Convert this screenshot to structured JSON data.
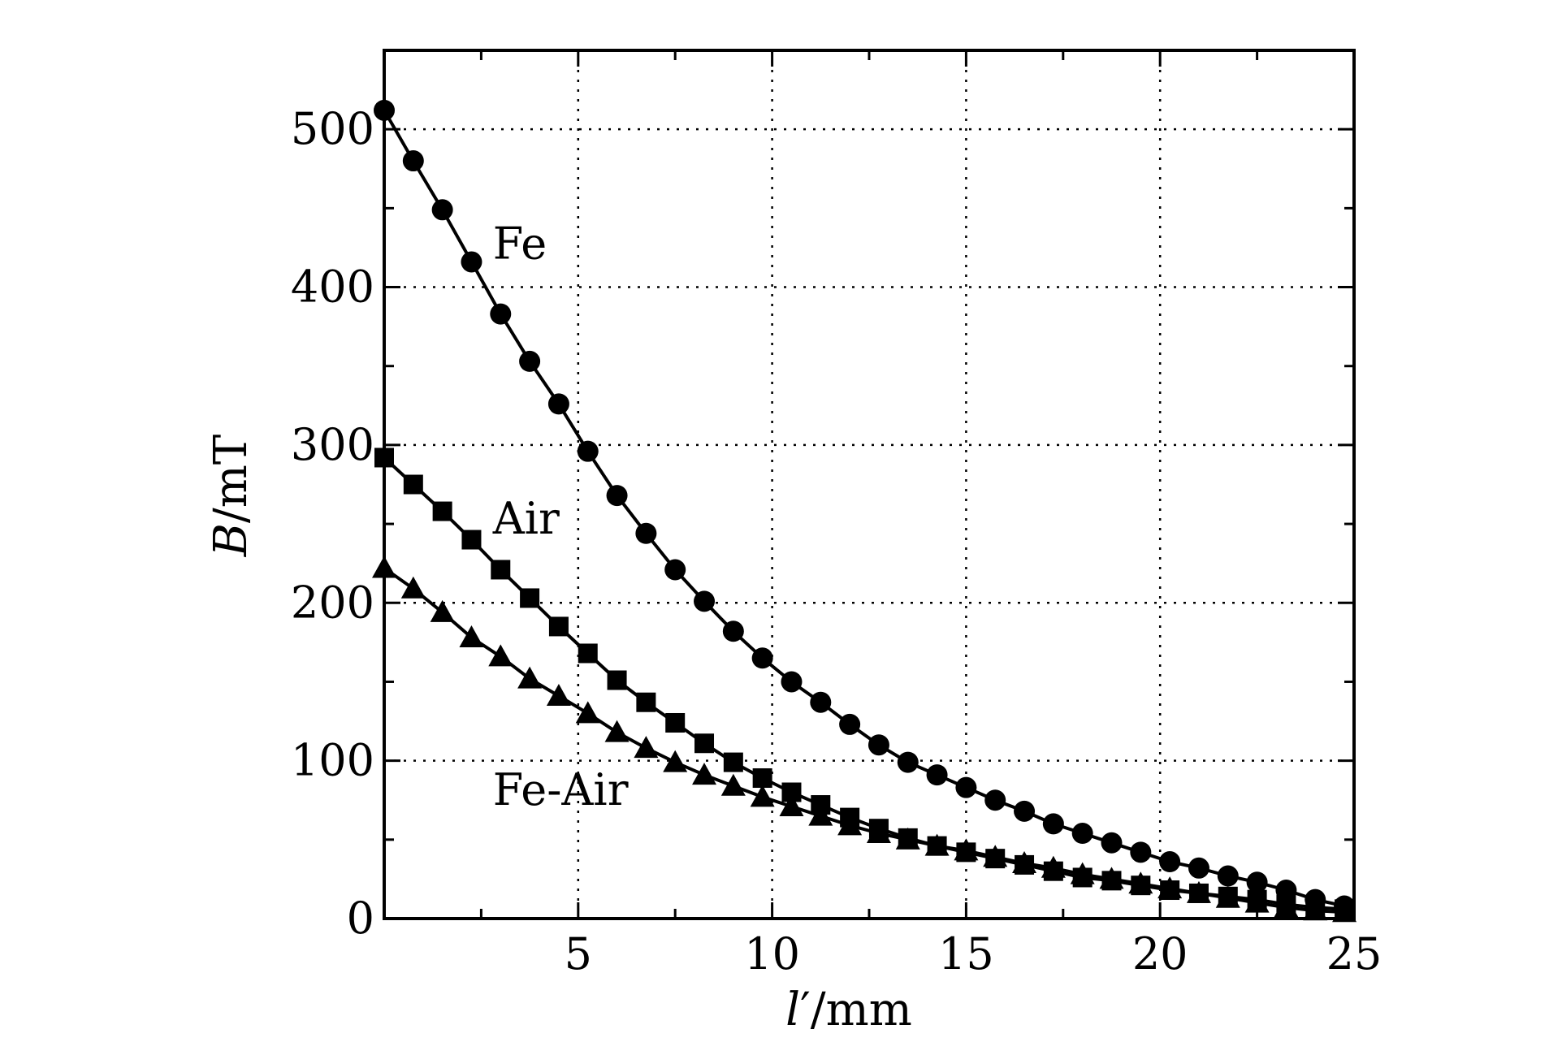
{
  "chart_data": {
    "type": "line",
    "xlim": [
      0,
      25
    ],
    "ylim": [
      0,
      550
    ],
    "x_ticks": [
      5,
      10,
      15,
      20,
      25
    ],
    "y_ticks": [
      0,
      100,
      200,
      300,
      400,
      500
    ],
    "grid": true,
    "xlabel": {
      "var": "l",
      "prime": "′",
      "unit": "/mm"
    },
    "ylabel": {
      "var": "B",
      "unit": "/mT"
    },
    "series": [
      {
        "name": "Fe",
        "marker": "circle",
        "x": [
          0,
          0.75,
          1.5,
          2.25,
          3,
          3.75,
          4.5,
          5.25,
          6,
          6.75,
          7.5,
          8.25,
          9,
          9.75,
          10.5,
          11.25,
          12,
          12.75,
          13.5,
          14.25,
          15,
          15.75,
          16.5,
          17.25,
          18,
          18.75,
          19.5,
          20.25,
          21,
          21.75,
          22.5,
          23.25,
          24,
          24.75
        ],
        "values": [
          512,
          480,
          449,
          416,
          383,
          353,
          326,
          296,
          268,
          244,
          221,
          201,
          182,
          165,
          150,
          137,
          123,
          110,
          99,
          91,
          83,
          75,
          68,
          60,
          54,
          48,
          42,
          36,
          32,
          27,
          23,
          18,
          12,
          8
        ]
      },
      {
        "name": "Air",
        "marker": "square",
        "x": [
          0,
          0.75,
          1.5,
          2.25,
          3,
          3.75,
          4.5,
          5.25,
          6,
          6.75,
          7.5,
          8.25,
          9,
          9.75,
          10.5,
          11.25,
          12,
          12.75,
          13.5,
          14.25,
          15,
          15.75,
          16.5,
          17.25,
          18,
          18.75,
          19.5,
          20.25,
          21,
          21.75,
          22.5,
          23.25,
          24,
          24.75
        ],
        "values": [
          292,
          275,
          258,
          240,
          221,
          203,
          185,
          168,
          151,
          137,
          124,
          111,
          99,
          89,
          80,
          72,
          64,
          57,
          51,
          46,
          42,
          38,
          34,
          30,
          26,
          24,
          21,
          18,
          16,
          14,
          12,
          9,
          7,
          6
        ]
      },
      {
        "name": "Fe-Air",
        "marker": "triangle",
        "x": [
          0,
          0.75,
          1.5,
          2.25,
          3,
          3.75,
          4.5,
          5.25,
          6,
          6.75,
          7.5,
          8.25,
          9,
          9.75,
          10.5,
          11.25,
          12,
          12.75,
          13.5,
          14.25,
          15,
          15.75,
          16.5,
          17.25,
          18,
          18.75,
          19.5,
          20.25,
          21,
          21.75,
          22.5,
          23.25,
          24,
          24.75
        ],
        "values": [
          222,
          209,
          194,
          178,
          166,
          152,
          141,
          130,
          118,
          108,
          99,
          91,
          84,
          77,
          71,
          65,
          59,
          54,
          50,
          46,
          43,
          39,
          35,
          32,
          28,
          25,
          22,
          19,
          16,
          13,
          10,
          7,
          5,
          4
        ]
      }
    ],
    "annotations": [
      {
        "text": "Fe",
        "x": 2.8,
        "y": 418
      },
      {
        "text": "Air",
        "x": 2.8,
        "y": 244
      },
      {
        "text": "Fe-Air",
        "x": 2.8,
        "y": 72
      }
    ]
  }
}
